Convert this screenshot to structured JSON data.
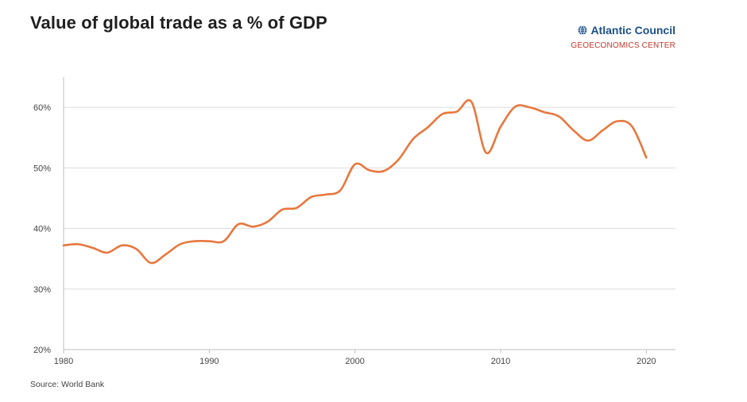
{
  "title": "Value of global trade as a % of GDP",
  "brand": {
    "name": "Atlantic Council",
    "subtitle": "GEOECONOMICS CENTER",
    "icon": "globe-icon",
    "name_color": "#1b4f8a",
    "subtitle_color": "#c0392b"
  },
  "source": "Source: World Bank",
  "chart_data": {
    "type": "line",
    "title": "Value of global trade as a % of GDP",
    "xlabel": "",
    "ylabel": "",
    "xlim": [
      1980,
      2022
    ],
    "ylim": [
      20,
      65
    ],
    "x_ticks": [
      1980,
      1990,
      2000,
      2010,
      2020
    ],
    "y_ticks": [
      20,
      30,
      40,
      50,
      60
    ],
    "y_tick_labels": [
      "20%",
      "30%",
      "40%",
      "50%",
      "60%"
    ],
    "grid": "horizontal",
    "line_color": "#e8773d",
    "series": [
      {
        "x": [
          1980,
          1981,
          1982,
          1983,
          1984,
          1985,
          1986,
          1987,
          1988,
          1989,
          1990,
          1991,
          1992,
          1993,
          1994,
          1995,
          1996,
          1997,
          1998,
          1999,
          2000,
          2001,
          2002,
          2003,
          2004,
          2005,
          2006,
          2007,
          2008,
          2009,
          2010,
          2011,
          2012,
          2013,
          2014,
          2015,
          2016,
          2017,
          2018,
          2019,
          2020
        ],
        "values": [
          37.2,
          37.4,
          36.8,
          36.0,
          37.2,
          36.6,
          34.3,
          35.7,
          37.4,
          37.9,
          37.9,
          37.9,
          40.7,
          40.3,
          41.1,
          43.1,
          43.4,
          45.2,
          45.6,
          46.3,
          50.6,
          49.6,
          49.5,
          51.4,
          54.8,
          56.7,
          58.9,
          59.3,
          60.9,
          52.5,
          56.8,
          60.1,
          60.0,
          59.2,
          58.5,
          56.2,
          54.5,
          56.2,
          57.7,
          56.9,
          51.7
        ]
      }
    ]
  }
}
